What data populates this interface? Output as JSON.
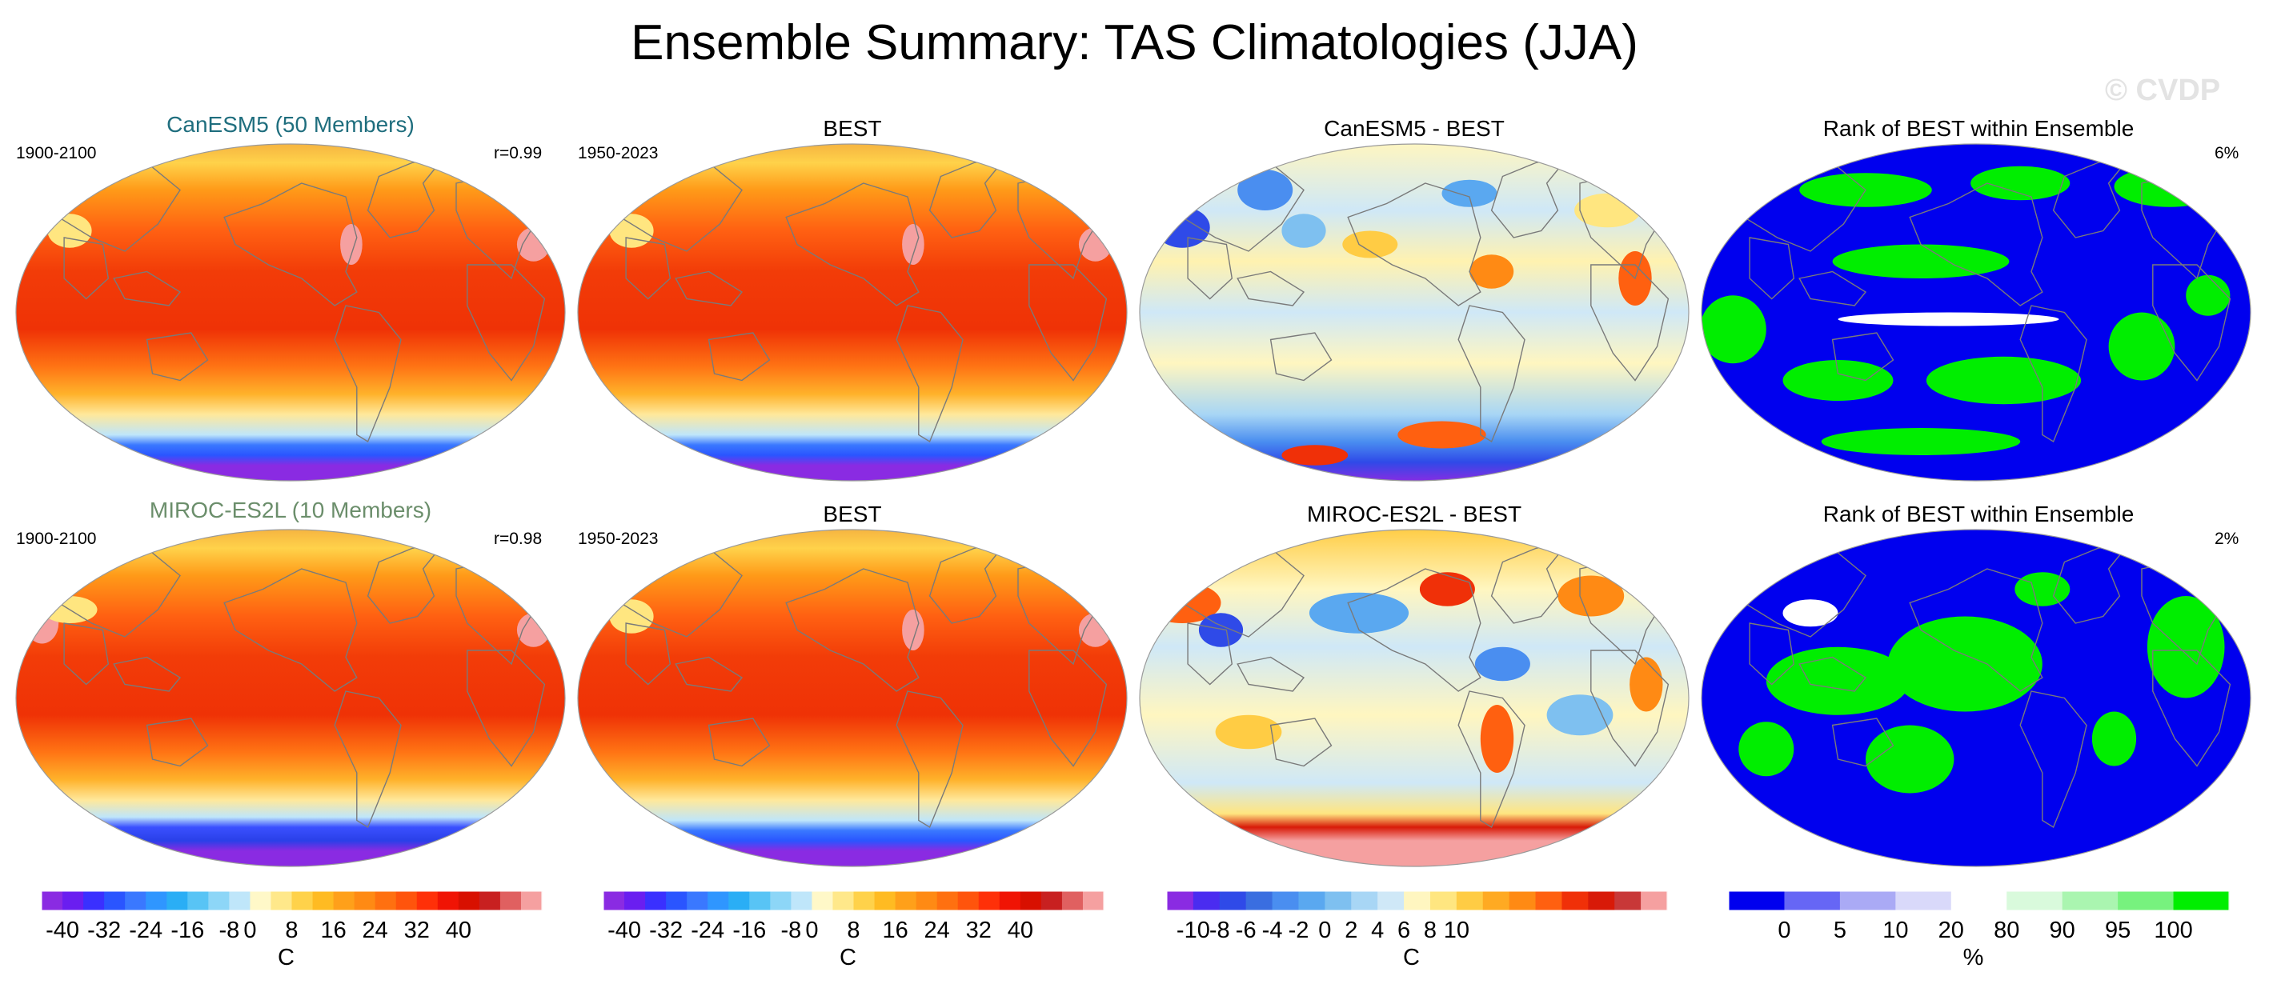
{
  "title": "Ensemble Summary: TAS Climatologies (JJA)",
  "watermark": "© CVDP",
  "colors": {
    "canesm_title": "#1f6e7e",
    "miroc_title": "#6b8e6b",
    "land_outline": "#7a7a7a",
    "rank_low": "#0000ee",
    "rank_high": "#00ee00"
  },
  "rows": [
    {
      "model_panel": {
        "title": "CanESM5 (50 Members)",
        "left_label": "1900-2100",
        "right_label": "r=0.99",
        "field": "temp"
      },
      "obs_panel": {
        "title": "BEST",
        "left_label": "1950-2023",
        "field": "temp"
      },
      "diff_panel": {
        "title": "CanESM5 - BEST",
        "field": "diff_a"
      },
      "rank_panel": {
        "title": "Rank of BEST within Ensemble",
        "right_label": "6%",
        "field": "rank_a"
      }
    },
    {
      "model_panel": {
        "title": "MIROC-ES2L (10 Members)",
        "left_label": "1900-2100",
        "right_label": "r=0.98",
        "field": "temp"
      },
      "obs_panel": {
        "title": "BEST",
        "left_label": "1950-2023",
        "field": "temp"
      },
      "diff_panel": {
        "title": "MIROC-ES2L - BEST",
        "field": "diff_b"
      },
      "rank_panel": {
        "title": "Rank of BEST within Ensemble",
        "right_label": "2%",
        "field": "rank_b"
      }
    }
  ],
  "colorbars": [
    {
      "unit": "C",
      "colors": [
        "#8a2be2",
        "#6a1ef0",
        "#3a30ff",
        "#2a55ff",
        "#3a78ff",
        "#2f96ff",
        "#2aaef5",
        "#58c4f5",
        "#8dd6f7",
        "#bfe6fa",
        "#fff8c8",
        "#ffe88a",
        "#ffd24a",
        "#ffbb22",
        "#ffa01a",
        "#ff8a14",
        "#ff7010",
        "#ff540c",
        "#ff3008",
        "#f01404",
        "#d81000",
        "#c82020",
        "#e06060",
        "#f5a0a0"
      ],
      "tick_labels": [
        "-40",
        "-32",
        "-24",
        "-16",
        "-8",
        "0",
        "8",
        "16",
        "24",
        "32",
        "40"
      ],
      "tick_positions": [
        1,
        3,
        5,
        7,
        9,
        10,
        12,
        14,
        16,
        18,
        20
      ]
    },
    {
      "unit": "C",
      "colors": [
        "#8a2be2",
        "#6a1ef0",
        "#3a30ff",
        "#2a55ff",
        "#3a78ff",
        "#2f96ff",
        "#2aaef5",
        "#58c4f5",
        "#8dd6f7",
        "#bfe6fa",
        "#fff8c8",
        "#ffe88a",
        "#ffd24a",
        "#ffbb22",
        "#ffa01a",
        "#ff8a14",
        "#ff7010",
        "#ff540c",
        "#ff3008",
        "#f01404",
        "#d81000",
        "#c82020",
        "#e06060",
        "#f5a0a0"
      ],
      "tick_labels": [
        "-40",
        "-32",
        "-24",
        "-16",
        "-8",
        "0",
        "8",
        "16",
        "24",
        "32",
        "40"
      ],
      "tick_positions": [
        1,
        3,
        5,
        7,
        9,
        10,
        12,
        14,
        16,
        18,
        20
      ]
    },
    {
      "unit": "C",
      "colors": [
        "#8a2be2",
        "#4a2cf0",
        "#2f4ae8",
        "#3a6ee0",
        "#4a8ef0",
        "#5aa8f0",
        "#7ec0f0",
        "#a8d6f5",
        "#cfe8f7",
        "#fff6c0",
        "#ffe680",
        "#ffcc44",
        "#ffaa22",
        "#ff8a14",
        "#ff6010",
        "#f03008",
        "#d81a08",
        "#c83838",
        "#f5a0a0"
      ],
      "tick_labels": [
        "-10",
        "-8",
        "-6",
        "-4",
        "-2",
        "0",
        "2",
        "4",
        "6",
        "8",
        "10"
      ],
      "tick_positions": [
        1,
        2,
        3,
        4,
        5,
        6,
        7,
        8,
        9,
        10,
        11
      ]
    },
    {
      "unit": "%",
      "colors": [
        "#0000ee",
        "#6666f5",
        "#aaaaf5",
        "#d9d9fa",
        "#ffffff",
        "#d9fadc",
        "#aaf5b0",
        "#77f27e",
        "#00ee00"
      ],
      "tick_labels": [
        "0",
        "5",
        "10",
        "20",
        "80",
        "90",
        "95",
        "100"
      ],
      "tick_positions": [
        1,
        2,
        3,
        4,
        5,
        6,
        7,
        8
      ]
    }
  ],
  "chart_data": [
    {
      "type": "heatmap",
      "title": "Ensemble Summary: TAS Climatologies (JJA)",
      "description": "Filled contour world maps (Robinson-like projection) of JJA near-surface air temperature climatology, model minus observation differences, and observational rank within ensemble",
      "panels": [
        {
          "row": 1,
          "col": 1,
          "title": "CanESM5 (50 Members)",
          "period": "1900-2100",
          "pattern_correlation": 0.99,
          "units": "C"
        },
        {
          "row": 1,
          "col": 2,
          "title": "BEST",
          "period": "1950-2023",
          "units": "C"
        },
        {
          "row": 1,
          "col": 3,
          "title": "CanESM5 - BEST",
          "units": "C"
        },
        {
          "row": 1,
          "col": 4,
          "title": "Rank of BEST within Ensemble",
          "area_fraction_label": "6%",
          "units": "%"
        },
        {
          "row": 2,
          "col": 1,
          "title": "MIROC-ES2L (10 Members)",
          "period": "1900-2100",
          "pattern_correlation": 0.98,
          "units": "C"
        },
        {
          "row": 2,
          "col": 2,
          "title": "BEST",
          "period": "1950-2023",
          "units": "C"
        },
        {
          "row": 2,
          "col": 3,
          "title": "MIROC-ES2L - BEST",
          "units": "C"
        },
        {
          "row": 2,
          "col": 4,
          "title": "Rank of BEST within Ensemble",
          "area_fraction_label": "2%",
          "units": "%"
        }
      ],
      "colorbar_levels": {
        "temperature": [
          -40,
          -36,
          -32,
          -28,
          -24,
          -20,
          -16,
          -12,
          -8,
          -4,
          0,
          4,
          8,
          12,
          16,
          20,
          24,
          28,
          32,
          36,
          40
        ],
        "difference": [
          -10,
          -9,
          -8,
          -7,
          -6,
          -5,
          -4,
          -3,
          -2,
          -1,
          0,
          1,
          2,
          3,
          4,
          5,
          6,
          7,
          8,
          9,
          10
        ],
        "rank_percent": [
          0,
          5,
          10,
          20,
          80,
          90,
          95,
          100
        ]
      }
    }
  ]
}
